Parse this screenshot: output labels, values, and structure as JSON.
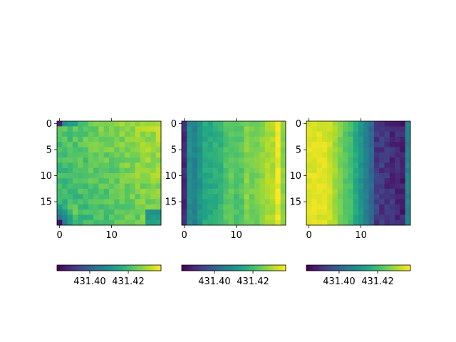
{
  "chart_data": {
    "type": "heatmap",
    "colormap": "viridis",
    "grid": false,
    "panels": [
      {
        "name": "",
        "rows": 20,
        "cols": 20,
        "x_ticks": [
          {
            "value": 0,
            "label": "0"
          },
          {
            "value": 10,
            "label": "10"
          }
        ],
        "y_ticks": [
          {
            "value": 0,
            "label": "0"
          },
          {
            "value": 5,
            "label": "5"
          },
          {
            "value": 10,
            "label": "10"
          },
          {
            "value": 15,
            "label": "15"
          }
        ],
        "pattern": "bright toward upper-right, darker at bottom-left corner",
        "colorbar": {
          "orientation": "horizontal",
          "vmin": 431.383,
          "vmax": 431.437,
          "ticks": [
            {
              "value": 431.4,
              "label": "431.40"
            },
            {
              "value": 431.42,
              "label": "431.42"
            }
          ]
        }
      },
      {
        "name": "",
        "rows": 20,
        "cols": 20,
        "x_ticks": [
          {
            "value": 0,
            "label": "0"
          },
          {
            "value": 10,
            "label": "10"
          }
        ],
        "y_ticks": [
          {
            "value": 0,
            "label": "0"
          },
          {
            "value": 5,
            "label": "5"
          },
          {
            "value": 10,
            "label": "10"
          },
          {
            "value": 15,
            "label": "15"
          }
        ],
        "pattern": "increasing left to right with vertical banding",
        "colorbar": {
          "orientation": "horizontal",
          "vmin": 431.383,
          "vmax": 431.437,
          "ticks": [
            {
              "value": 431.4,
              "label": "431.40"
            },
            {
              "value": 431.42,
              "label": "431.42"
            }
          ]
        }
      },
      {
        "name": "",
        "rows": 20,
        "cols": 20,
        "x_ticks": [
          {
            "value": 0,
            "label": "0"
          },
          {
            "value": 10,
            "label": "10"
          }
        ],
        "y_ticks": [
          {
            "value": 0,
            "label": "0"
          },
          {
            "value": 5,
            "label": "5"
          },
          {
            "value": 10,
            "label": "10"
          },
          {
            "value": 15,
            "label": "15"
          }
        ],
        "pattern": "decreasing left to right, bright yellow left, dark purple right",
        "colorbar": {
          "orientation": "horizontal",
          "vmin": 431.383,
          "vmax": 431.437,
          "ticks": [
            {
              "value": 431.4,
              "label": "431.40"
            },
            {
              "value": 431.42,
              "label": "431.42"
            }
          ]
        }
      }
    ]
  }
}
